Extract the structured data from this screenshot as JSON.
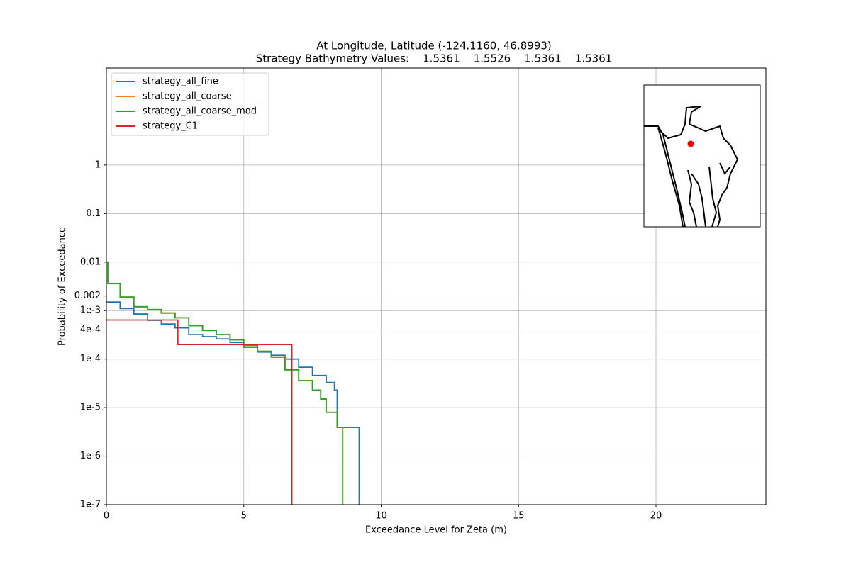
{
  "chart_data": {
    "type": "step",
    "title": "At Longitude, Latitude (-124.1160,  46.8993)",
    "subtitle": "Strategy Bathymetry Values:    1.5361    1.5526    1.5361    1.5361",
    "x_label": "Exceedance Level for Zeta (m)",
    "y_label": "Probability of Exceedance",
    "xlim": [
      0,
      24
    ],
    "xticks": [
      0,
      5,
      10,
      15,
      20
    ],
    "ylim": [
      1e-07,
      100
    ],
    "yscale": "log",
    "yticks": [
      {
        "value": 1e-07,
        "label": "1e-7"
      },
      {
        "value": 1e-06,
        "label": "1e-6"
      },
      {
        "value": 1e-05,
        "label": "1e-5"
      },
      {
        "value": 0.0001,
        "label": "1e-4"
      },
      {
        "value": 0.0004,
        "label": "4e-4"
      },
      {
        "value": 0.001,
        "label": "1e-3"
      },
      0.002,
      0.01,
      0.1,
      1
    ],
    "grid": true,
    "legend": "upper left",
    "series": [
      {
        "name": "strategy_all_fine",
        "color": "#1f77b4",
        "x": [
          0,
          0.5,
          1,
          1.5,
          2,
          2.5,
          3,
          3.5,
          4,
          4.5,
          5,
          5.5,
          6,
          6.5,
          7,
          7.5,
          8,
          8.3,
          8.4,
          9.2
        ],
        "values": [
          0.0015,
          0.0011,
          0.00085,
          0.00063,
          0.00053,
          0.00044,
          0.00032,
          0.00029,
          0.00026,
          0.00022,
          0.000175,
          0.00014,
          0.00012,
          0.0001,
          6.8e-05,
          4.6e-05,
          3.3e-05,
          2.3e-05,
          3.9e-06,
          1e-07
        ]
      },
      {
        "name": "strategy_all_coarse",
        "color": "#ff7f0e",
        "x": [
          0,
          0.05,
          0.5,
          1,
          1.5,
          2,
          2.5,
          3,
          3.5,
          4,
          4.5,
          5,
          5.5,
          6,
          6.5,
          7,
          7.5,
          7.8,
          8,
          8.4,
          8.6
        ],
        "values": [
          0.01,
          0.0036,
          0.0019,
          0.0012,
          0.00105,
          0.00089,
          0.00071,
          0.00049,
          0.00039,
          0.00032,
          0.00025,
          0.00019,
          0.000145,
          0.00011,
          6e-05,
          3.6e-05,
          2.3e-05,
          1.5e-05,
          8e-06,
          3.9e-06,
          1e-07
        ]
      },
      {
        "name": "strategy_all_coarse_mod",
        "color": "#2ca02c",
        "x": [
          0,
          0.05,
          0.5,
          1,
          1.5,
          2,
          2.5,
          3,
          3.5,
          4,
          4.5,
          5,
          5.5,
          6,
          6.5,
          7,
          7.5,
          7.8,
          8,
          8.4,
          8.6
        ],
        "values": [
          0.01,
          0.0036,
          0.0019,
          0.0012,
          0.00105,
          0.00089,
          0.00071,
          0.00049,
          0.00039,
          0.00032,
          0.00025,
          0.00019,
          0.000145,
          0.00011,
          6e-05,
          3.6e-05,
          2.3e-05,
          1.5e-05,
          8e-06,
          3.9e-06,
          1e-07
        ]
      },
      {
        "name": "strategy_C1",
        "color": "#d62728",
        "x": [
          0,
          2.6,
          6.75
        ],
        "values": [
          0.00064,
          0.0002,
          1e-07
        ]
      }
    ]
  }
}
